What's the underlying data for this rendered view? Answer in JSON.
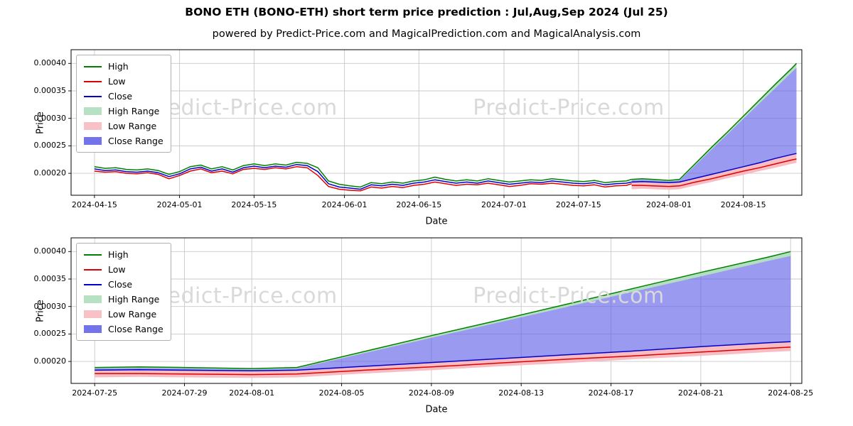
{
  "page": {
    "title": "BONO ETH (BONO-ETH) short term price prediction : Jul,Aug,Sep 2024 (Jul 25)",
    "subtitle": "powered by Predict-Price.com and MagicalPrediction.com and MagicalAnalysis.com",
    "watermark": "Predict-Price.com"
  },
  "colors": {
    "high": "#008000",
    "low": "#e00000",
    "close": "#0000cd",
    "high_range": "#a9dcb8",
    "low_range": "#f7b6bc",
    "close_range": "#5c5ce6",
    "grid": "#c8c8c8",
    "watermark": "#d9d9d9"
  },
  "chart_data": [
    {
      "name": "top-chart",
      "type": "line",
      "title": "",
      "xlabel": "Date",
      "ylabel": "Price",
      "x_unit": "days since 2024-04-15",
      "xlim_days": [
        -4.4,
        133
      ],
      "ylim": [
        0.00016,
        0.000425
      ],
      "yticks": [
        0.0002,
        0.00025,
        0.0003,
        0.00035,
        0.0004
      ],
      "ytick_labels": [
        "0.00020",
        "0.00025",
        "0.00030",
        "0.00035",
        "0.00040"
      ],
      "xticks_days": [
        0,
        16,
        30,
        47,
        61,
        77,
        91,
        108,
        122
      ],
      "xtick_labels": [
        "2024-04-15",
        "2024-05-01",
        "2024-05-15",
        "2024-06-01",
        "2024-06-15",
        "2024-07-01",
        "2024-07-15",
        "2024-08-01",
        "2024-08-15"
      ],
      "legend": [
        {
          "label": "High",
          "swatch": "line",
          "color": "high"
        },
        {
          "label": "Low",
          "swatch": "line",
          "color": "low"
        },
        {
          "label": "Close",
          "swatch": "line",
          "color": "close"
        },
        {
          "label": "High Range",
          "swatch": "patch",
          "color": "high_range"
        },
        {
          "label": "Low Range",
          "swatch": "patch",
          "color": "low_range"
        },
        {
          "label": "Close Range",
          "swatch": "patch",
          "color": "close_range"
        }
      ],
      "bands": [
        {
          "name": "high-range",
          "label": "High Range",
          "upper": "high",
          "lower": "close_upper",
          "color": "high_range",
          "opacity": 0.9
        },
        {
          "name": "close-range",
          "label": "Close Range",
          "upper": "close_upper",
          "lower": "close",
          "color": "close_range",
          "opacity": 0.62
        },
        {
          "name": "low-range",
          "label": "Low Range",
          "upper": "close",
          "lower": "low_lower",
          "color": "low_range",
          "opacity": 0.9
        }
      ],
      "lines": [
        {
          "name": "high",
          "label": "High",
          "series": "high",
          "color": "high"
        },
        {
          "name": "low",
          "label": "Low",
          "series": "low",
          "color": "low"
        },
        {
          "name": "close",
          "label": "Close",
          "series": "close",
          "color": "close"
        }
      ],
      "series": {
        "historical": {
          "x": [
            0,
            2,
            4,
            6,
            8,
            10,
            12,
            14,
            16,
            18,
            20,
            22,
            24,
            26,
            28,
            30,
            32,
            34,
            36,
            38,
            40,
            42,
            44,
            46,
            48,
            50,
            52,
            54,
            56,
            58,
            60,
            62,
            64,
            66,
            68,
            70,
            72,
            74,
            76,
            78,
            80,
            82,
            84,
            86,
            88,
            90,
            92,
            94,
            96,
            98,
            100,
            101
          ],
          "high": [
            0.000212,
            0.000209,
            0.00021,
            0.000207,
            0.000206,
            0.000208,
            0.000205,
            0.000198,
            0.000203,
            0.000212,
            0.000215,
            0.000208,
            0.000212,
            0.000206,
            0.000214,
            0.000217,
            0.000214,
            0.000217,
            0.000215,
            0.00022,
            0.000218,
            0.00021,
            0.000186,
            0.00018,
            0.000177,
            0.000175,
            0.000183,
            0.000181,
            0.000184,
            0.000182,
            0.000186,
            0.000188,
            0.000193,
            0.000189,
            0.000186,
            0.000188,
            0.000186,
            0.00019,
            0.000187,
            0.000184,
            0.000186,
            0.000188,
            0.000187,
            0.00019,
            0.000188,
            0.000186,
            0.000185,
            0.000187,
            0.000183,
            0.000185,
            0.000186,
            0.000189
          ],
          "low": [
            0.000204,
            0.000202,
            0.000203,
            0.0002,
            0.000199,
            0.000201,
            0.000198,
            0.00019,
            0.000196,
            0.000204,
            0.000208,
            0.000201,
            0.000204,
            0.000199,
            0.000207,
            0.000209,
            0.000207,
            0.00021,
            0.000208,
            0.000212,
            0.00021,
            0.000196,
            0.000176,
            0.000171,
            0.000169,
            0.000168,
            0.000175,
            0.000173,
            0.000176,
            0.000174,
            0.000178,
            0.00018,
            0.000184,
            0.000181,
            0.000178,
            0.00018,
            0.000179,
            0.000182,
            0.000179,
            0.000176,
            0.000178,
            0.000181,
            0.00018,
            0.000182,
            0.00018,
            0.000178,
            0.000177,
            0.000179,
            0.000175,
            0.000177,
            0.000178,
            0.000181
          ],
          "close": [
            0.000208,
            0.000205,
            0.000206,
            0.000203,
            0.000202,
            0.000204,
            0.000201,
            0.000194,
            0.000199,
            0.000208,
            0.000211,
            0.000204,
            0.000208,
            0.000202,
            0.00021,
            0.000213,
            0.00021,
            0.000213,
            0.000211,
            0.000216,
            0.000214,
            0.000203,
            0.000181,
            0.000175,
            0.000173,
            0.000171,
            0.000179,
            0.000177,
            0.00018,
            0.000178,
            0.000182,
            0.000184,
            0.000188,
            0.000185,
            0.000182,
            0.000184,
            0.000182,
            0.000186,
            0.000183,
            0.00018,
            0.000182,
            0.000184,
            0.000183,
            0.000186,
            0.000184,
            0.000182,
            0.000181,
            0.000183,
            0.000179,
            0.000181,
            0.000182,
            0.000184
          ]
        },
        "prediction": {
          "x": [
            101,
            103,
            105,
            108,
            110,
            113,
            116,
            119,
            122,
            125,
            128,
            131,
            132
          ],
          "high": [
            0.000189,
            0.00019,
            0.000189,
            0.000187,
            0.000189,
            0.000218,
            0.000247,
            0.000275,
            0.000304,
            0.000333,
            0.000362,
            0.00039,
            0.0004
          ],
          "close_upper": [
            0.000187,
            0.000188,
            0.000187,
            0.000185,
            0.000187,
            0.000215,
            0.000243,
            0.000271,
            0.000299,
            0.000327,
            0.000355,
            0.000383,
            0.000392
          ],
          "close": [
            0.000184,
            0.000185,
            0.000184,
            0.000183,
            0.000184,
            0.000191,
            0.000198,
            0.000205,
            0.000212,
            0.000219,
            0.000227,
            0.000234,
            0.000236
          ],
          "low": [
            0.000178,
            0.000178,
            0.000177,
            0.000176,
            0.000177,
            0.000184,
            0.00019,
            0.000197,
            0.000204,
            0.00021,
            0.000217,
            0.000224,
            0.000226
          ],
          "low_lower": [
            0.000171,
            0.000172,
            0.000171,
            0.00017,
            0.000171,
            0.000178,
            0.000184,
            0.000191,
            0.000197,
            0.000204,
            0.00021,
            0.000217,
            0.000219
          ]
        }
      }
    },
    {
      "name": "bottom-chart",
      "type": "line",
      "title": "",
      "xlabel": "Date",
      "ylabel": "Price",
      "x_unit": "days since 2024-04-15",
      "xlim_days": [
        99.95,
        132.5
      ],
      "ylim": [
        0.00016,
        0.000425
      ],
      "yticks": [
        0.0002,
        0.00025,
        0.0003,
        0.00035,
        0.0004
      ],
      "ytick_labels": [
        "0.00020",
        "0.00025",
        "0.00030",
        "0.00035",
        "0.00040"
      ],
      "xticks_days": [
        101,
        105,
        108,
        112,
        116,
        120,
        124,
        128,
        132
      ],
      "xtick_labels": [
        "2024-07-25",
        "2024-07-29",
        "2024-08-01",
        "2024-08-05",
        "2024-08-09",
        "2024-08-13",
        "2024-08-17",
        "2024-08-21",
        "2024-08-25"
      ],
      "legend": [
        {
          "label": "High",
          "swatch": "line",
          "color": "high"
        },
        {
          "label": "Low",
          "swatch": "line",
          "color": "low"
        },
        {
          "label": "Close",
          "swatch": "line",
          "color": "close"
        },
        {
          "label": "High Range",
          "swatch": "patch",
          "color": "high_range"
        },
        {
          "label": "Low Range",
          "swatch": "patch",
          "color": "low_range"
        },
        {
          "label": "Close Range",
          "swatch": "patch",
          "color": "close_range"
        }
      ],
      "bands": [
        {
          "name": "high-range",
          "label": "High Range",
          "upper": "high",
          "lower": "close_upper",
          "color": "high_range",
          "opacity": 0.9
        },
        {
          "name": "close-range",
          "label": "Close Range",
          "upper": "close_upper",
          "lower": "close",
          "color": "close_range",
          "opacity": 0.62
        },
        {
          "name": "low-range",
          "label": "Low Range",
          "upper": "close",
          "lower": "low_lower",
          "color": "low_range",
          "opacity": 0.9
        }
      ],
      "lines": [
        {
          "name": "high",
          "label": "High",
          "series": "high",
          "color": "high"
        },
        {
          "name": "low",
          "label": "Low",
          "series": "low",
          "color": "low"
        },
        {
          "name": "close",
          "label": "Close",
          "series": "close",
          "color": "close"
        }
      ],
      "series": {
        "prediction": {
          "x": [
            101,
            103,
            105,
            108,
            110,
            113,
            116,
            119,
            122,
            125,
            128,
            131,
            132
          ],
          "high": [
            0.000189,
            0.00019,
            0.000189,
            0.000187,
            0.000189,
            0.000218,
            0.000247,
            0.000275,
            0.000304,
            0.000333,
            0.000362,
            0.00039,
            0.0004
          ],
          "close_upper": [
            0.000187,
            0.000188,
            0.000187,
            0.000185,
            0.000187,
            0.000215,
            0.000243,
            0.000271,
            0.000299,
            0.000327,
            0.000355,
            0.000383,
            0.000392
          ],
          "close": [
            0.000184,
            0.000185,
            0.000184,
            0.000183,
            0.000184,
            0.000191,
            0.000198,
            0.000205,
            0.000212,
            0.000219,
            0.000227,
            0.000234,
            0.000236
          ],
          "low": [
            0.000178,
            0.000178,
            0.000177,
            0.000176,
            0.000177,
            0.000184,
            0.00019,
            0.000197,
            0.000204,
            0.00021,
            0.000217,
            0.000224,
            0.000226
          ],
          "low_lower": [
            0.000171,
            0.000172,
            0.000171,
            0.00017,
            0.000171,
            0.000178,
            0.000184,
            0.000191,
            0.000197,
            0.000204,
            0.00021,
            0.000217,
            0.000219
          ]
        }
      }
    }
  ]
}
